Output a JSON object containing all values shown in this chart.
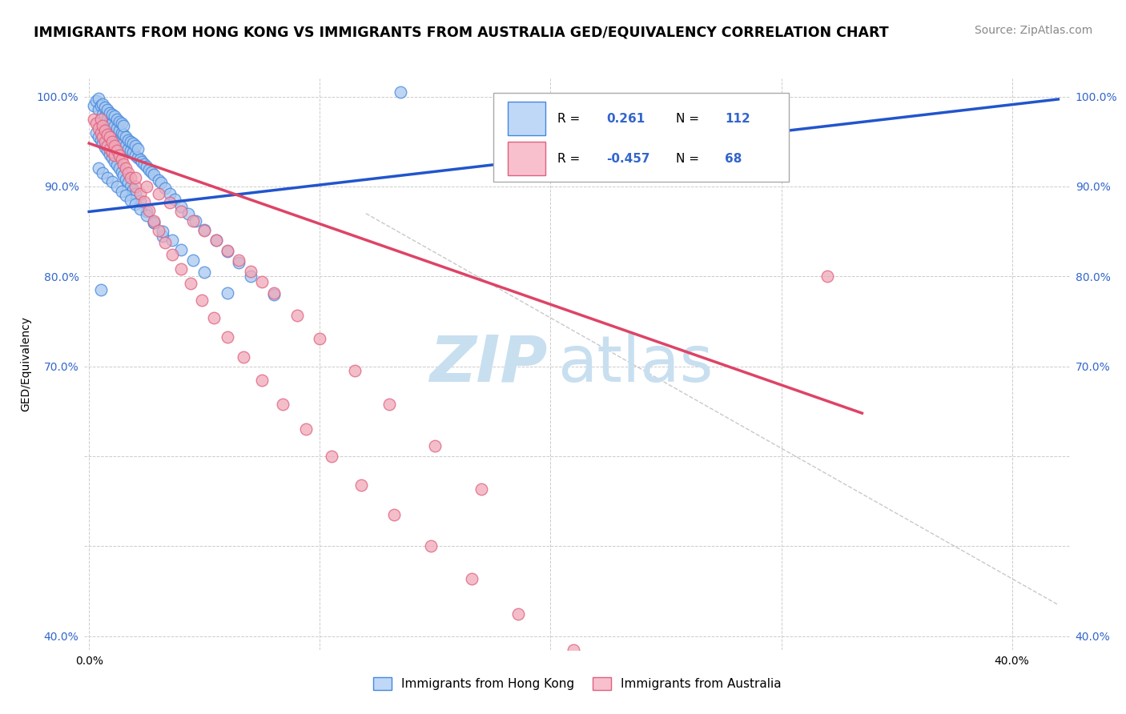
{
  "title": "IMMIGRANTS FROM HONG KONG VS IMMIGRANTS FROM AUSTRALIA GED/EQUIVALENCY CORRELATION CHART",
  "source": "Source: ZipAtlas.com",
  "ylabel_label": "GED/Equivalency",
  "legend_label1": "Immigrants from Hong Kong",
  "legend_label2": "Immigrants from Australia",
  "r1": 0.261,
  "n1": 112,
  "r2": -0.457,
  "n2": 68,
  "color_hk": "#a8c8f0",
  "color_au": "#f0a8b8",
  "color_hk_edge": "#4488dd",
  "color_au_edge": "#e06080",
  "color_hk_line": "#2255cc",
  "color_au_line": "#dd4466",
  "color_hk_box": "#c0d8f8",
  "color_au_box": "#f8c0cc",
  "background": "#ffffff",
  "grid_color": "#cccccc",
  "watermark_zip_color": "#c8dff0",
  "watermark_atlas_color": "#c8dff0",
  "title_fontsize": 12.5,
  "source_fontsize": 10,
  "axis_label_fontsize": 10,
  "tick_fontsize": 10,
  "xlim": [
    -0.002,
    0.425
  ],
  "ylim": [
    0.385,
    1.02
  ],
  "x_ticks": [
    0.0,
    0.1,
    0.2,
    0.3,
    0.4
  ],
  "x_tick_labels": [
    "0.0%",
    "",
    "",
    "",
    "40.0%"
  ],
  "y_ticks": [
    0.4,
    0.5,
    0.6,
    0.7,
    0.8,
    0.9,
    1.0
  ],
  "y_tick_labels": [
    "40.0%",
    "",
    "",
    "70.0%",
    "80.0%",
    "90.0%",
    "100.0%"
  ],
  "hk_trend_x": [
    0.0,
    0.42
  ],
  "hk_trend_y": [
    0.872,
    0.997
  ],
  "au_trend_x": [
    0.0,
    0.335
  ],
  "au_trend_y": [
    0.948,
    0.648
  ],
  "dashed_line_x": [
    0.12,
    0.42
  ],
  "dashed_line_y": [
    0.87,
    0.435
  ],
  "hk_x": [
    0.002,
    0.003,
    0.004,
    0.004,
    0.005,
    0.005,
    0.006,
    0.006,
    0.006,
    0.007,
    0.007,
    0.007,
    0.008,
    0.008,
    0.008,
    0.009,
    0.009,
    0.009,
    0.009,
    0.01,
    0.01,
    0.01,
    0.011,
    0.011,
    0.011,
    0.012,
    0.012,
    0.012,
    0.013,
    0.013,
    0.013,
    0.014,
    0.014,
    0.014,
    0.015,
    0.015,
    0.015,
    0.016,
    0.016,
    0.017,
    0.017,
    0.018,
    0.018,
    0.019,
    0.019,
    0.02,
    0.02,
    0.021,
    0.021,
    0.022,
    0.023,
    0.024,
    0.025,
    0.026,
    0.027,
    0.028,
    0.03,
    0.031,
    0.033,
    0.035,
    0.037,
    0.04,
    0.043,
    0.046,
    0.05,
    0.055,
    0.06,
    0.065,
    0.07,
    0.08,
    0.003,
    0.004,
    0.005,
    0.006,
    0.007,
    0.008,
    0.009,
    0.01,
    0.011,
    0.012,
    0.013,
    0.014,
    0.015,
    0.016,
    0.017,
    0.018,
    0.019,
    0.02,
    0.022,
    0.025,
    0.028,
    0.032,
    0.004,
    0.006,
    0.008,
    0.01,
    0.012,
    0.014,
    0.016,
    0.018,
    0.02,
    0.022,
    0.025,
    0.028,
    0.032,
    0.036,
    0.04,
    0.045,
    0.05,
    0.06,
    0.005,
    0.135
  ],
  "hk_y": [
    0.99,
    0.995,
    0.985,
    0.998,
    0.975,
    0.99,
    0.97,
    0.98,
    0.992,
    0.968,
    0.978,
    0.988,
    0.965,
    0.975,
    0.985,
    0.962,
    0.972,
    0.982,
    0.96,
    0.96,
    0.97,
    0.98,
    0.958,
    0.968,
    0.978,
    0.955,
    0.965,
    0.975,
    0.952,
    0.962,
    0.972,
    0.95,
    0.96,
    0.97,
    0.948,
    0.958,
    0.968,
    0.945,
    0.955,
    0.942,
    0.952,
    0.94,
    0.95,
    0.938,
    0.948,
    0.935,
    0.945,
    0.932,
    0.942,
    0.93,
    0.928,
    0.925,
    0.922,
    0.919,
    0.916,
    0.913,
    0.907,
    0.904,
    0.898,
    0.892,
    0.886,
    0.878,
    0.87,
    0.862,
    0.852,
    0.84,
    0.828,
    0.815,
    0.8,
    0.78,
    0.96,
    0.955,
    0.952,
    0.948,
    0.944,
    0.94,
    0.936,
    0.932,
    0.928,
    0.924,
    0.92,
    0.916,
    0.912,
    0.908,
    0.904,
    0.9,
    0.896,
    0.892,
    0.884,
    0.872,
    0.86,
    0.845,
    0.92,
    0.915,
    0.91,
    0.905,
    0.9,
    0.895,
    0.89,
    0.885,
    0.88,
    0.875,
    0.868,
    0.86,
    0.85,
    0.84,
    0.83,
    0.818,
    0.805,
    0.782,
    0.785,
    1.005
  ],
  "au_x": [
    0.002,
    0.003,
    0.004,
    0.005,
    0.005,
    0.006,
    0.006,
    0.007,
    0.007,
    0.008,
    0.008,
    0.009,
    0.009,
    0.01,
    0.01,
    0.011,
    0.011,
    0.012,
    0.013,
    0.014,
    0.015,
    0.016,
    0.017,
    0.018,
    0.02,
    0.022,
    0.024,
    0.026,
    0.028,
    0.03,
    0.033,
    0.036,
    0.04,
    0.044,
    0.049,
    0.054,
    0.06,
    0.067,
    0.075,
    0.084,
    0.094,
    0.105,
    0.118,
    0.132,
    0.148,
    0.166,
    0.186,
    0.21,
    0.02,
    0.025,
    0.03,
    0.035,
    0.04,
    0.045,
    0.05,
    0.055,
    0.06,
    0.065,
    0.07,
    0.075,
    0.08,
    0.09,
    0.1,
    0.115,
    0.13,
    0.15,
    0.17,
    0.32
  ],
  "au_y": [
    0.975,
    0.97,
    0.965,
    0.975,
    0.96,
    0.968,
    0.955,
    0.962,
    0.95,
    0.958,
    0.945,
    0.955,
    0.942,
    0.95,
    0.938,
    0.945,
    0.935,
    0.94,
    0.935,
    0.93,
    0.925,
    0.92,
    0.915,
    0.91,
    0.9,
    0.892,
    0.883,
    0.873,
    0.862,
    0.851,
    0.838,
    0.824,
    0.808,
    0.792,
    0.774,
    0.754,
    0.733,
    0.71,
    0.685,
    0.658,
    0.63,
    0.6,
    0.568,
    0.535,
    0.5,
    0.464,
    0.425,
    0.385,
    0.91,
    0.9,
    0.892,
    0.882,
    0.872,
    0.862,
    0.851,
    0.84,
    0.829,
    0.818,
    0.806,
    0.794,
    0.782,
    0.757,
    0.731,
    0.695,
    0.658,
    0.612,
    0.564,
    0.8
  ]
}
